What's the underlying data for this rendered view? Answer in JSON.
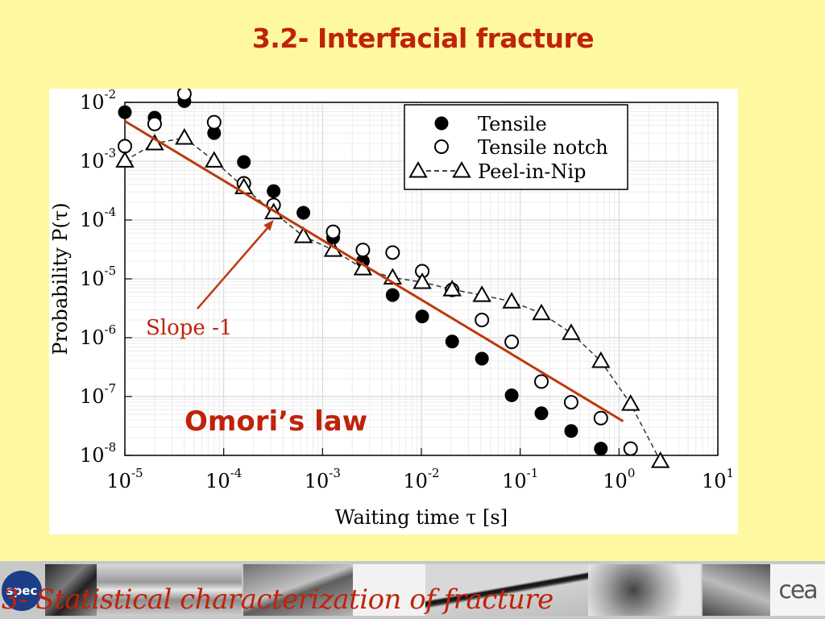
{
  "slide": {
    "title": "3.2- Interfacial fracture",
    "footer_caption": "3- Statistical characterization of fracture",
    "logo_left": "spec",
    "logo_right": "cea"
  },
  "colors": {
    "background": "#fef9a0",
    "accent_red": "#c0220a",
    "fit_line": "#c0380e",
    "series_line": "#333333"
  },
  "chart_data": {
    "type": "scatter",
    "x_scale": "log",
    "y_scale": "log",
    "xlim": [
      1e-05,
      10
    ],
    "ylim": [
      1e-08,
      0.01
    ],
    "xlabel": "Waiting time τ [s]",
    "ylabel": "Probability P(τ)",
    "grid": true,
    "legend_position": "top-right",
    "x_ticks": [
      {
        "value": 1e-05,
        "base": "10",
        "exp": "-5"
      },
      {
        "value": 0.0001,
        "base": "10",
        "exp": "-4"
      },
      {
        "value": 0.001,
        "base": "10",
        "exp": "-3"
      },
      {
        "value": 0.01,
        "base": "10",
        "exp": "-2"
      },
      {
        "value": 0.1,
        "base": "10",
        "exp": "-1"
      },
      {
        "value": 1,
        "base": "10",
        "exp": "0"
      },
      {
        "value": 10,
        "base": "10",
        "exp": "1"
      }
    ],
    "y_ticks": [
      {
        "value": 1e-08,
        "base": "10",
        "exp": "-8"
      },
      {
        "value": 1e-07,
        "base": "10",
        "exp": "-7"
      },
      {
        "value": 1e-06,
        "base": "10",
        "exp": "-6"
      },
      {
        "value": 1e-05,
        "base": "10",
        "exp": "-5"
      },
      {
        "value": 0.0001,
        "base": "10",
        "exp": "-4"
      },
      {
        "value": 0.001,
        "base": "10",
        "exp": "-3"
      },
      {
        "value": 0.01,
        "base": "10",
        "exp": "-2"
      }
    ],
    "series": [
      {
        "name": "Tensile",
        "marker": "filled-circle",
        "points": [
          [
            1e-05,
            0.0068
          ],
          [
            2e-05,
            0.0055
          ],
          [
            4e-05,
            0.0105
          ],
          [
            8e-05,
            0.003
          ],
          [
            0.00016,
            0.00097
          ],
          [
            0.00032,
            0.00031
          ],
          [
            0.00064,
            0.000133
          ],
          [
            0.00128,
            5e-05
          ],
          [
            0.00256,
            2e-05
          ],
          [
            0.00512,
            5.3e-06
          ],
          [
            0.0102,
            2.3e-06
          ],
          [
            0.0205,
            8.6e-07
          ],
          [
            0.041,
            4.4e-07
          ],
          [
            0.082,
            1.05e-07
          ],
          [
            0.164,
            5.2e-08
          ],
          [
            0.328,
            2.6e-08
          ],
          [
            0.655,
            1.3e-08
          ]
        ]
      },
      {
        "name": "Tensile notch",
        "marker": "open-circle",
        "points": [
          [
            1e-05,
            0.0018
          ],
          [
            2e-05,
            0.0043
          ],
          [
            4e-05,
            0.014
          ],
          [
            8e-05,
            0.0046
          ],
          [
            0.00016,
            0.00042
          ],
          [
            0.00032,
            0.00018
          ],
          [
            0.00128,
            6.3e-05
          ],
          [
            0.00256,
            3.1e-05
          ],
          [
            0.00512,
            2.8e-05
          ],
          [
            0.0102,
            1.35e-05
          ],
          [
            0.0205,
            6.5e-06
          ],
          [
            0.041,
            2e-06
          ],
          [
            0.082,
            8.5e-07
          ],
          [
            0.164,
            1.8e-07
          ],
          [
            0.328,
            8e-08
          ],
          [
            0.655,
            4.3e-08
          ],
          [
            1.31,
            1.3e-08
          ]
        ]
      },
      {
        "name": "Peel-in-Nip",
        "marker": "open-triangle",
        "line": "dashed",
        "points": [
          [
            1e-05,
            0.00102
          ],
          [
            2e-05,
            0.002
          ],
          [
            4e-05,
            0.0025
          ],
          [
            8e-05,
            0.00102
          ],
          [
            0.00016,
            0.00036
          ],
          [
            0.00032,
            0.000135
          ],
          [
            0.00064,
            5.3e-05
          ],
          [
            0.00128,
            3.1e-05
          ],
          [
            0.00256,
            1.5e-05
          ],
          [
            0.00512,
            1.05e-05
          ],
          [
            0.0102,
            8.8e-06
          ],
          [
            0.0205,
            6.6e-06
          ],
          [
            0.041,
            5.3e-06
          ],
          [
            0.082,
            4.1e-06
          ],
          [
            0.164,
            2.6e-06
          ],
          [
            0.328,
            1.2e-06
          ],
          [
            0.655,
            4e-07
          ],
          [
            1.31,
            7.5e-08
          ],
          [
            2.62,
            8e-09
          ]
        ]
      }
    ],
    "fit_line": {
      "from": [
        1e-05,
        0.0048
      ],
      "to": [
        1.1,
        3.8e-08
      ]
    },
    "annotations": [
      {
        "text": "Slope -1",
        "arrow_to": [
          0.00032,
          0.0001
        ]
      },
      {
        "text": "Omori’s law"
      }
    ]
  }
}
